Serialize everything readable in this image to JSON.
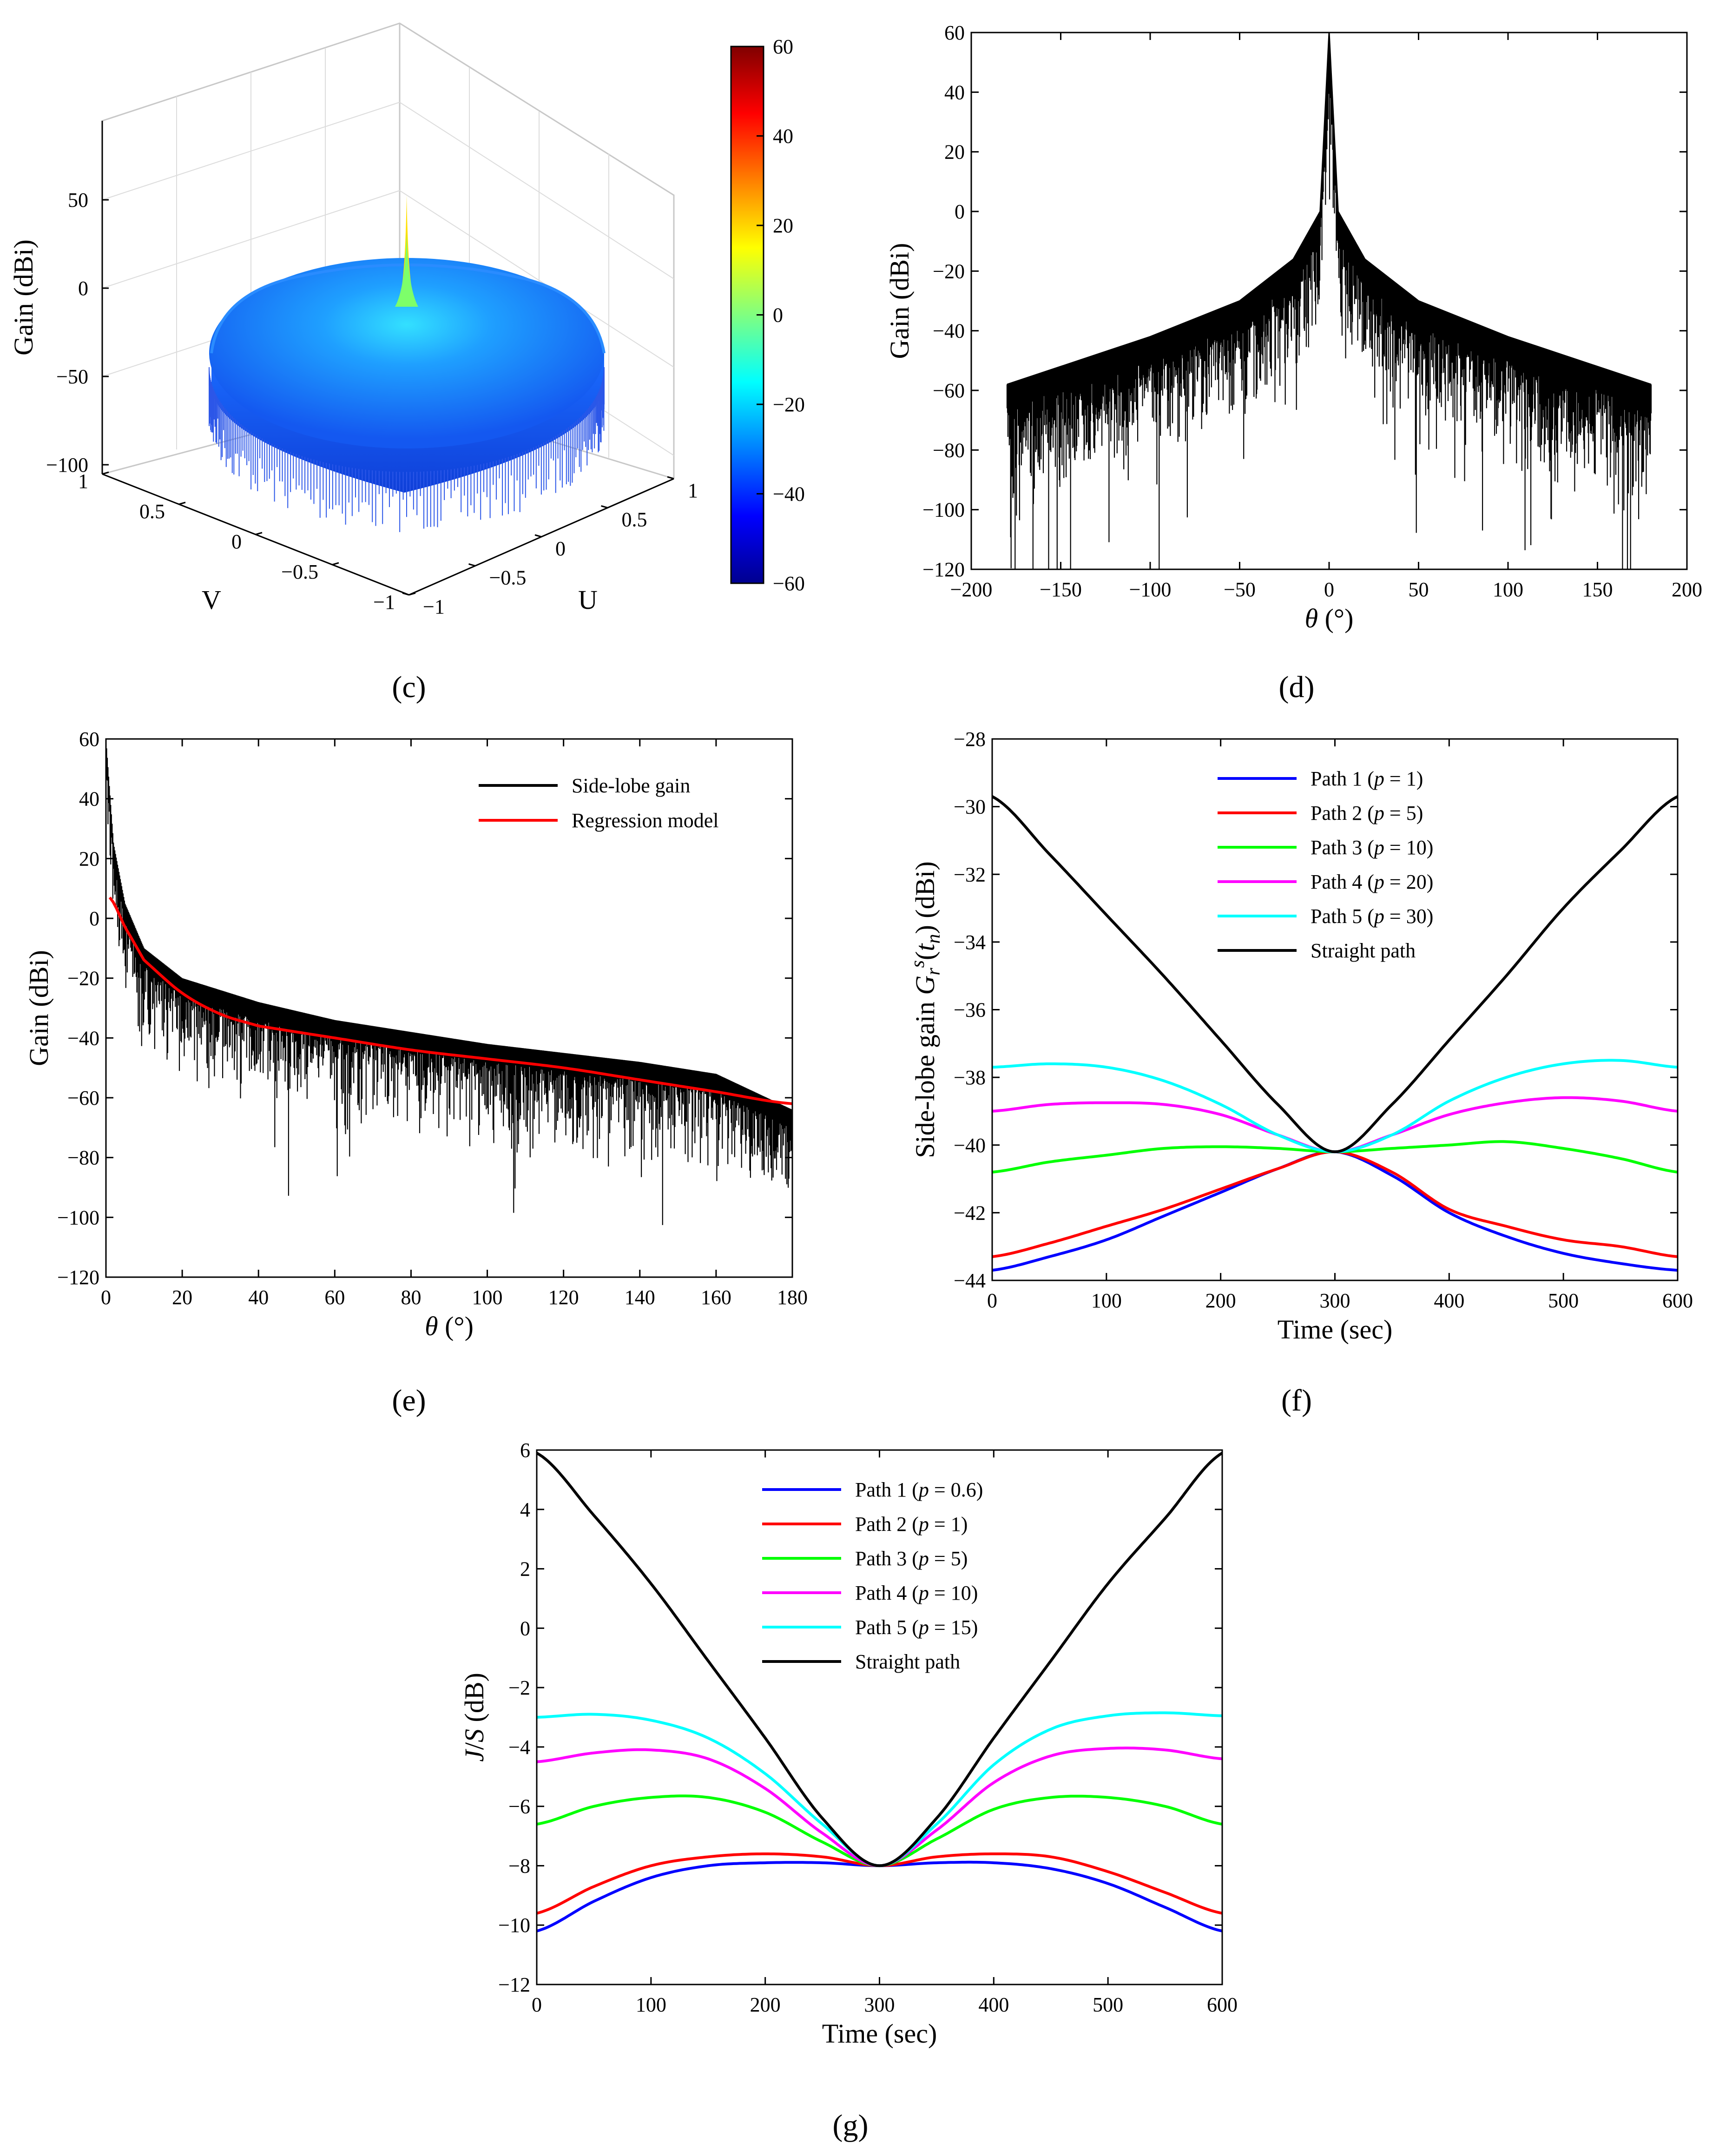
{
  "panel_labels": [
    "(c)",
    "(d)",
    "(e)",
    "(f)",
    "(g)"
  ],
  "colorbar": {
    "ticks": [
      "60",
      "40",
      "20",
      "0",
      "−20",
      "−40",
      "−60"
    ],
    "range": [
      -60,
      60
    ],
    "colormap": [
      "#00008f",
      "#0000ff",
      "#0080ff",
      "#00ffff",
      "#80ff80",
      "#ffff00",
      "#ff8000",
      "#ff0000",
      "#800000"
    ]
  },
  "colors": {
    "black": "#000000",
    "red": "#ff0000",
    "blue": "#0000ff",
    "green": "#00ff00",
    "magenta": "#ff00ff",
    "cyan": "#00ffff"
  },
  "chart_data": [
    {
      "panel": "(c)",
      "type": "surface",
      "zlabel": "Gain (dBi)",
      "xlabel": "U",
      "ylabel": "V",
      "z_ticks": [
        "50",
        "0",
        "−50",
        "−100"
      ],
      "v_ticks": [
        "1",
        "0.5",
        "0",
        "−0.5",
        "−1"
      ],
      "u_ticks": [
        "−1",
        "−0.5",
        "0",
        "0.5",
        "1"
      ],
      "zlim": [
        -100,
        60
      ],
      "peak_gain": 60,
      "sidelobe_level_typical": -40
    },
    {
      "panel": "(d)",
      "type": "line",
      "xlabel": "θ (°)",
      "ylabel": "Gain (dBi)",
      "xlim": [
        -200,
        200
      ],
      "ylim": [
        -120,
        60
      ],
      "x_ticks": [
        "−200",
        "−150",
        "−100",
        "−50",
        "0",
        "50",
        "100",
        "150",
        "200"
      ],
      "y_ticks": [
        "60",
        "40",
        "20",
        "0",
        "−20",
        "−40",
        "−60",
        "−80",
        "−100",
        "−120"
      ],
      "series": [
        {
          "color": "#000000",
          "envelope_x": [
            -180,
            -150,
            -100,
            -50,
            -20,
            -5,
            0,
            5,
            20,
            50,
            100,
            150,
            180
          ],
          "envelope_y": [
            -58,
            -52,
            -42,
            -30,
            -16,
            0,
            60,
            0,
            -16,
            -30,
            -42,
            -52,
            -58
          ]
        }
      ]
    },
    {
      "panel": "(e)",
      "type": "line",
      "xlabel": "θ (°)",
      "ylabel": "Gain (dBi)",
      "xlim": [
        0,
        180
      ],
      "ylim": [
        -120,
        60
      ],
      "x_ticks": [
        "0",
        "20",
        "40",
        "60",
        "80",
        "100",
        "120",
        "140",
        "160",
        "180"
      ],
      "y_ticks": [
        "60",
        "40",
        "20",
        "0",
        "−20",
        "−40",
        "−60",
        "−80",
        "−100",
        "−120"
      ],
      "legend": [
        "Side-lobe gain",
        "Regression model"
      ],
      "series": [
        {
          "name": "Side-lobe gain",
          "color": "#000000",
          "envelope_x": [
            0,
            2,
            5,
            10,
            20,
            40,
            60,
            80,
            100,
            120,
            140,
            160,
            180
          ],
          "envelope_y": [
            60,
            25,
            5,
            -10,
            -20,
            -28,
            -34,
            -38,
            -42,
            -45,
            -48,
            -52,
            -64
          ]
        },
        {
          "name": "Regression model",
          "color": "#ff0000",
          "x": [
            1,
            5,
            10,
            20,
            30,
            40,
            60,
            80,
            100,
            120,
            140,
            160,
            180
          ],
          "y": [
            7,
            -3,
            -14,
            -25,
            -32,
            -36,
            -40,
            -44,
            -47,
            -50,
            -54,
            -58,
            -62
          ]
        }
      ]
    },
    {
      "panel": "(f)",
      "type": "line",
      "xlabel": "Time (sec)",
      "ylabel": "Side-lobe gain G_r^s(t_n) (dBi)",
      "xlim": [
        0,
        600
      ],
      "ylim": [
        -44,
        -28
      ],
      "x_ticks": [
        "0",
        "100",
        "200",
        "300",
        "400",
        "500",
        "600"
      ],
      "y_ticks": [
        "−28",
        "−30",
        "−32",
        "−34",
        "−36",
        "−38",
        "−40",
        "−42",
        "−44"
      ],
      "legend": [
        "Path 1 (p = 1)",
        "Path 2 (p = 5)",
        "Path 3 (p = 10)",
        "Path 4 (p = 20)",
        "Path 5 (p = 30)",
        "Straight path"
      ],
      "x": [
        0,
        50,
        100,
        150,
        200,
        250,
        300,
        350,
        400,
        450,
        500,
        550,
        600
      ],
      "series": [
        {
          "name": "Path 1 (p = 1)",
          "color": "#0000ff",
          "y": [
            -43.7,
            -43.3,
            -42.8,
            -42.1,
            -41.4,
            -40.7,
            -40.2,
            -40.9,
            -42.0,
            -42.7,
            -43.2,
            -43.5,
            -43.7
          ]
        },
        {
          "name": "Path 2 (p = 5)",
          "color": "#ff0000",
          "y": [
            -43.3,
            -42.9,
            -42.4,
            -41.9,
            -41.3,
            -40.7,
            -40.2,
            -40.8,
            -41.9,
            -42.4,
            -42.8,
            -43.0,
            -43.3
          ]
        },
        {
          "name": "Path 3 (p = 10)",
          "color": "#00ff00",
          "y": [
            -40.8,
            -40.5,
            -40.3,
            -40.1,
            -40.05,
            -40.1,
            -40.2,
            -40.1,
            -40.0,
            -39.9,
            -40.1,
            -40.4,
            -40.8
          ]
        },
        {
          "name": "Path 4 (p = 20)",
          "color": "#ff00ff",
          "y": [
            -39.0,
            -38.8,
            -38.75,
            -38.8,
            -39.1,
            -39.7,
            -40.2,
            -39.7,
            -39.1,
            -38.75,
            -38.6,
            -38.7,
            -39.0
          ]
        },
        {
          "name": "Path 5 (p = 30)",
          "color": "#00ffff",
          "y": [
            -37.7,
            -37.6,
            -37.7,
            -38.1,
            -38.8,
            -39.7,
            -40.2,
            -39.7,
            -38.7,
            -38.0,
            -37.6,
            -37.5,
            -37.7
          ]
        },
        {
          "name": "Straight path",
          "color": "#000000",
          "y": [
            -29.7,
            -31.4,
            -33.2,
            -35.0,
            -36.9,
            -38.8,
            -40.2,
            -38.8,
            -36.9,
            -35.0,
            -33.0,
            -31.3,
            -29.7
          ]
        }
      ]
    },
    {
      "panel": "(g)",
      "type": "line",
      "xlabel": "Time (sec)",
      "ylabel": "J/S (dB)",
      "xlim": [
        0,
        600
      ],
      "ylim": [
        -12,
        6
      ],
      "x_ticks": [
        "0",
        "100",
        "200",
        "300",
        "400",
        "500",
        "600"
      ],
      "y_ticks": [
        "6",
        "4",
        "2",
        "0",
        "−2",
        "−4",
        "−6",
        "−8",
        "−10",
        "−12"
      ],
      "legend": [
        "Path 1 (p = 0.6)",
        "Path 2 (p = 1)",
        "Path 3 (p = 5)",
        "Path 4 (p = 10)",
        "Path 5 (p = 15)",
        "Straight path"
      ],
      "x": [
        0,
        50,
        100,
        150,
        200,
        250,
        300,
        350,
        400,
        450,
        500,
        550,
        600
      ],
      "series": [
        {
          "name": "Path 1 (p = 0.6)",
          "color": "#0000ff",
          "y": [
            -10.2,
            -9.2,
            -8.4,
            -8.0,
            -7.9,
            -7.9,
            -8.0,
            -7.9,
            -7.9,
            -8.1,
            -8.6,
            -9.4,
            -10.2
          ]
        },
        {
          "name": "Path 2 (p = 1)",
          "color": "#ff0000",
          "y": [
            -9.6,
            -8.7,
            -8.0,
            -7.7,
            -7.6,
            -7.7,
            -8.0,
            -7.7,
            -7.6,
            -7.7,
            -8.2,
            -8.9,
            -9.6
          ]
        },
        {
          "name": "Path 3 (p = 5)",
          "color": "#00ff00",
          "y": [
            -6.6,
            -6.0,
            -5.7,
            -5.7,
            -6.2,
            -7.2,
            -8.0,
            -7.1,
            -6.1,
            -5.7,
            -5.7,
            -6.0,
            -6.6
          ]
        },
        {
          "name": "Path 4 (p = 10)",
          "color": "#ff00ff",
          "y": [
            -4.5,
            -4.2,
            -4.1,
            -4.4,
            -5.4,
            -6.9,
            -8.0,
            -6.8,
            -5.2,
            -4.3,
            -4.05,
            -4.1,
            -4.4
          ]
        },
        {
          "name": "Path 5 (p = 15)",
          "color": "#00ffff",
          "y": [
            -3.0,
            -2.9,
            -3.1,
            -3.7,
            -4.9,
            -6.6,
            -8.0,
            -6.6,
            -4.6,
            -3.4,
            -2.95,
            -2.85,
            -2.95
          ]
        },
        {
          "name": "Straight path",
          "color": "#000000",
          "y": [
            5.9,
            3.8,
            1.5,
            -1.1,
            -3.7,
            -6.4,
            -8.0,
            -6.4,
            -3.7,
            -1.1,
            1.5,
            3.7,
            5.9
          ]
        }
      ]
    }
  ]
}
